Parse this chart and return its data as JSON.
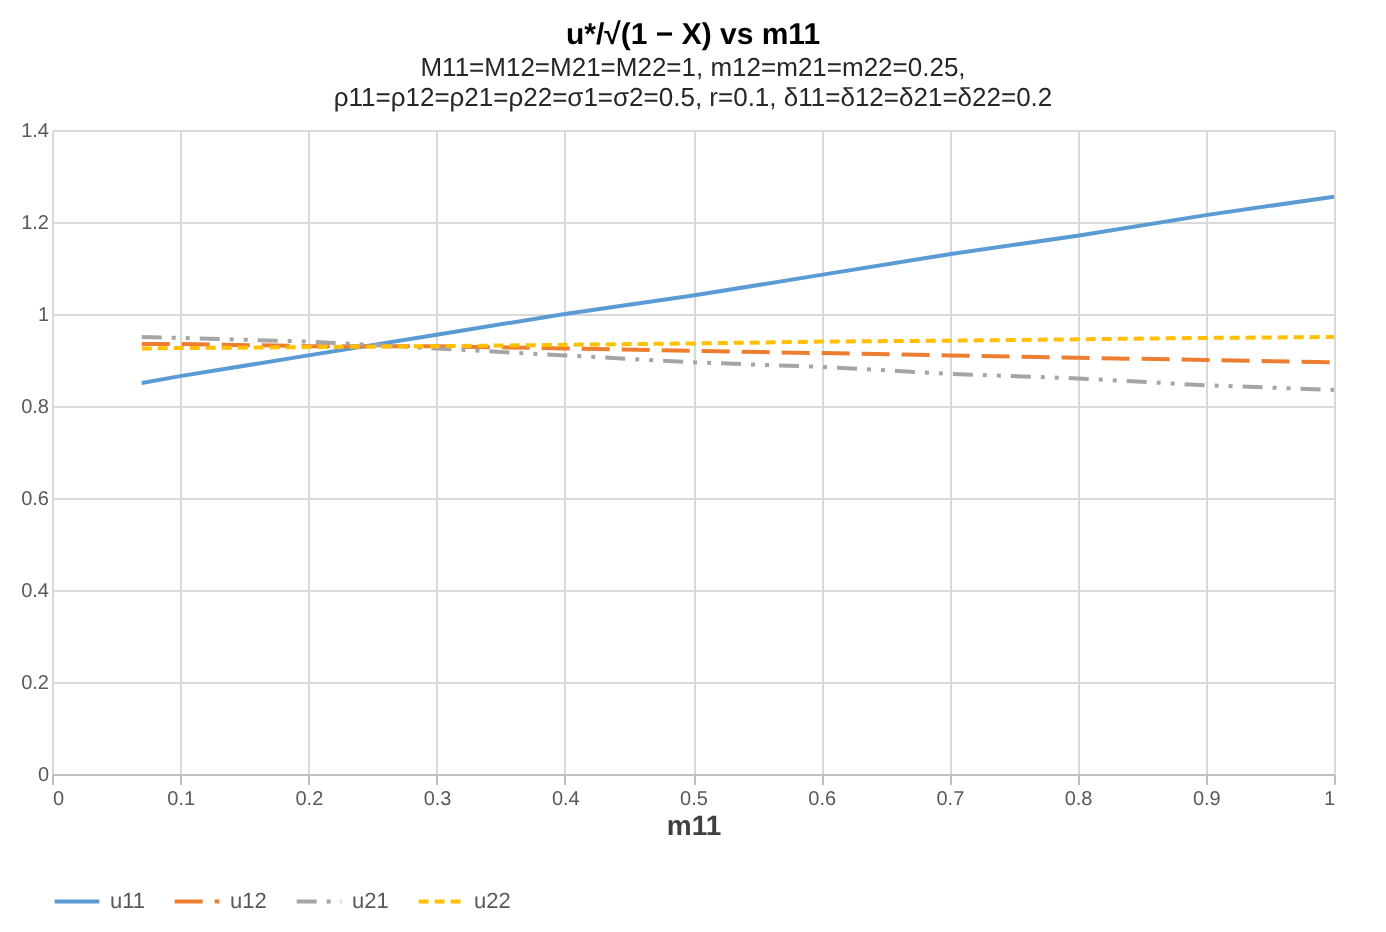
{
  "chart_data": {
    "type": "line",
    "title": "u*/√(1 − X) vs m11",
    "subtitle": [
      "M11=M12=M21=M22=1,  m12=m21=m22=0.25,",
      "ρ11=ρ12=ρ21=ρ22=σ1=σ2=0.5,  r=0.1, δ11=δ12=δ21=δ22=0.2"
    ],
    "xlabel": "m11",
    "x": [
      0.07,
      0.1,
      0.2,
      0.3,
      0.4,
      0.5,
      0.6,
      0.7,
      0.8,
      0.9,
      1.0
    ],
    "series": [
      {
        "name": "u11",
        "color": "#5b9bd5",
        "line_style": "solid",
        "values": [
          0.85,
          0.865,
          0.91,
          0.955,
          1.0,
          1.04,
          1.085,
          1.13,
          1.17,
          1.215,
          1.255
        ]
      },
      {
        "name": "u12",
        "color": "#ed7d31",
        "line_style": "dashed",
        "values": [
          0.935,
          0.935,
          0.93,
          0.93,
          0.925,
          0.92,
          0.915,
          0.91,
          0.905,
          0.9,
          0.895
        ]
      },
      {
        "name": "u21",
        "color": "#a5a5a5",
        "line_style": "dashdot",
        "values": [
          0.95,
          0.948,
          0.94,
          0.925,
          0.91,
          0.895,
          0.885,
          0.87,
          0.86,
          0.845,
          0.835
        ]
      },
      {
        "name": "u22",
        "color": "#ffc000",
        "line_style": "dotted",
        "values": [
          0.925,
          0.926,
          0.928,
          0.93,
          0.933,
          0.936,
          0.94,
          0.942,
          0.945,
          0.948,
          0.95
        ]
      }
    ],
    "xlim": [
      0,
      1
    ],
    "xticks": [
      0,
      0.1,
      0.2,
      0.3,
      0.4,
      0.5,
      0.6,
      0.7,
      0.8,
      0.9,
      1
    ],
    "ylim": [
      0,
      1.4
    ],
    "yticks": [
      0,
      0.2,
      0.4,
      0.6,
      0.8,
      1,
      1.2,
      1.4
    ],
    "grid": true,
    "legend": "bottom",
    "marker": "none"
  }
}
